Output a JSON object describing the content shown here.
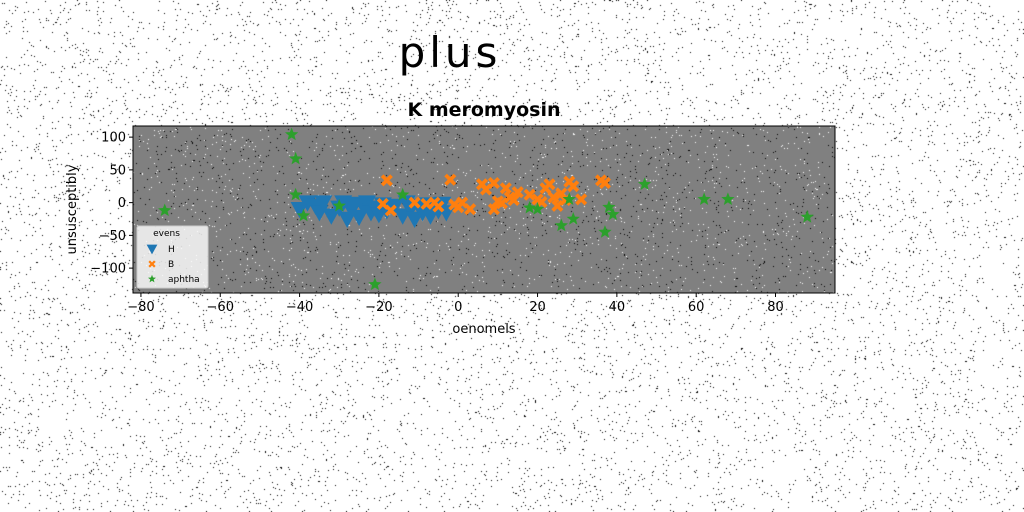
{
  "figure": {
    "suptitle": "plus"
  },
  "chart_data": {
    "type": "scatter",
    "title": "K meromyosin",
    "xlabel": "oenomels",
    "ylabel": "unsusceptibly",
    "xlim": [
      -82,
      95
    ],
    "ylim": [
      -138,
      117
    ],
    "xticks": [
      -80,
      -60,
      -40,
      -20,
      0,
      20,
      40,
      60,
      80
    ],
    "yticks": [
      -100,
      -50,
      0,
      50,
      100
    ],
    "grid": false,
    "background_color": "#808080",
    "legend": {
      "title": "evens",
      "placement": "lower-left"
    },
    "series": [
      {
        "name": "H",
        "marker": "triangle-down",
        "color": "#1f77b4",
        "points": [
          [
            -40,
            -10
          ],
          [
            -38,
            0
          ],
          [
            -36,
            -5
          ],
          [
            -35,
            -15
          ],
          [
            -34,
            0
          ],
          [
            -32,
            -20
          ],
          [
            -30,
            -8
          ],
          [
            -29,
            0
          ],
          [
            -28,
            -25
          ],
          [
            -27,
            -10
          ],
          [
            -26,
            -2
          ],
          [
            -25,
            -22
          ],
          [
            -24,
            -5
          ],
          [
            -23,
            0
          ],
          [
            -22,
            -15
          ],
          [
            -21,
            -8
          ],
          [
            -20,
            -18
          ],
          [
            -19,
            -3
          ],
          [
            -18,
            -12
          ],
          [
            -16,
            -5
          ],
          [
            -14,
            -20
          ],
          [
            -13,
            0
          ],
          [
            -12,
            -10
          ],
          [
            -11,
            -25
          ],
          [
            -10,
            -5
          ],
          [
            -9,
            -15
          ],
          [
            -8,
            -3
          ],
          [
            -7,
            -20
          ],
          [
            -6,
            -8
          ],
          [
            -5,
            -12
          ],
          [
            -4,
            -2
          ],
          [
            -3,
            -15
          ]
        ]
      },
      {
        "name": "B",
        "marker": "x",
        "color": "#ff7f0e",
        "points": [
          [
            -18,
            34
          ],
          [
            -17,
            -12
          ],
          [
            -19,
            -2
          ],
          [
            -11,
            0
          ],
          [
            -8,
            -2
          ],
          [
            -6,
            0
          ],
          [
            -5,
            -6
          ],
          [
            -2,
            35
          ],
          [
            -1,
            -3
          ],
          [
            0,
            -7
          ],
          [
            1,
            0
          ],
          [
            3,
            -10
          ],
          [
            6,
            28
          ],
          [
            7,
            20
          ],
          [
            9,
            30
          ],
          [
            9,
            -10
          ],
          [
            10,
            2
          ],
          [
            11,
            -1
          ],
          [
            12,
            22
          ],
          [
            13,
            8
          ],
          [
            14,
            4
          ],
          [
            15,
            16
          ],
          [
            18,
            12
          ],
          [
            20,
            5
          ],
          [
            21,
            1
          ],
          [
            22,
            22
          ],
          [
            23,
            28
          ],
          [
            24,
            8
          ],
          [
            25,
            -5
          ],
          [
            26,
            14
          ],
          [
            27,
            4
          ],
          [
            28,
            32
          ],
          [
            29,
            25
          ],
          [
            31,
            5
          ],
          [
            36,
            34
          ],
          [
            37,
            30
          ]
        ]
      },
      {
        "name": "aphtha",
        "marker": "star",
        "color": "#2ca02c",
        "points": [
          [
            -74,
            -12
          ],
          [
            -42,
            104
          ],
          [
            -41,
            67
          ],
          [
            -41,
            12
          ],
          [
            -39,
            -20
          ],
          [
            -30,
            -5
          ],
          [
            -21,
            -125
          ],
          [
            -14,
            12
          ],
          [
            18,
            -8
          ],
          [
            20,
            -10
          ],
          [
            26,
            -35
          ],
          [
            28,
            5
          ],
          [
            29,
            -25
          ],
          [
            37,
            -45
          ],
          [
            38,
            -7
          ],
          [
            39,
            -18
          ],
          [
            47,
            28
          ],
          [
            62,
            5
          ],
          [
            68,
            5
          ],
          [
            88,
            -22
          ]
        ]
      }
    ]
  }
}
